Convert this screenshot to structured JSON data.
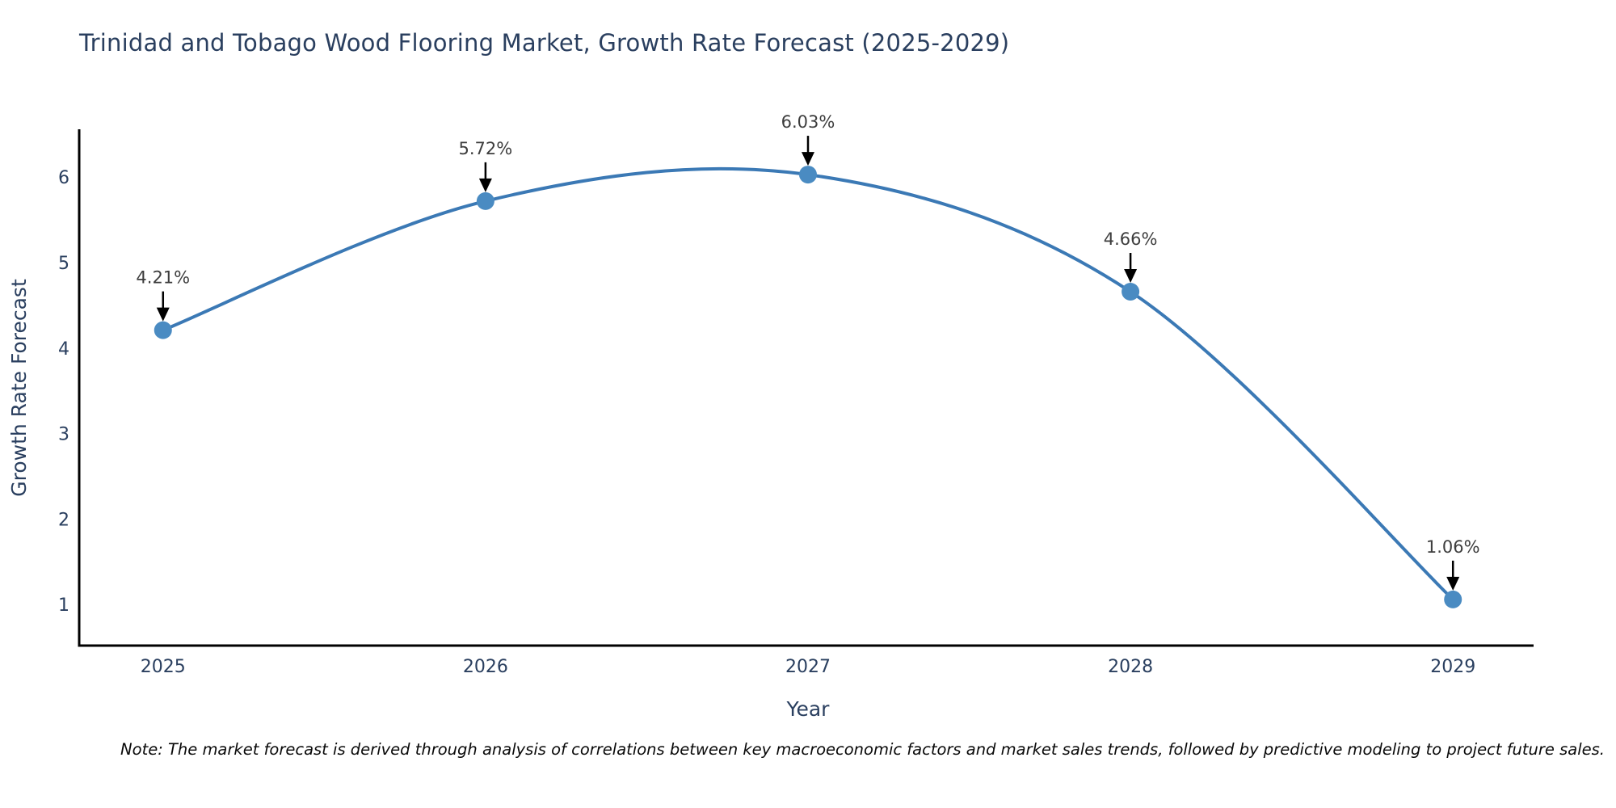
{
  "title": "Trinidad and Tobago Wood Flooring Market, Growth Rate Forecast (2025-2029)",
  "note": "Note: The market forecast is derived through analysis of correlations between key macroeconomic factors and market sales trends, followed by predictive modeling to project future sales.",
  "chart_data": {
    "type": "line",
    "title": "Trinidad and Tobago Wood Flooring Market, Growth Rate Forecast (2025-2029)",
    "xlabel": "Year",
    "ylabel": "Growth Rate Forecast",
    "x": [
      2025,
      2026,
      2027,
      2028,
      2029
    ],
    "y": [
      4.21,
      5.72,
      6.03,
      4.66,
      1.06
    ],
    "point_labels": [
      "4.21%",
      "5.72%",
      "6.03%",
      "4.66%",
      "1.06%"
    ],
    "yticks": [
      1,
      2,
      3,
      4,
      5,
      6
    ],
    "xticks": [
      2025,
      2026,
      2027,
      2028,
      2029
    ],
    "xlim": [
      2024.74,
      2029.25
    ],
    "ylim": [
      0.52,
      6.56
    ],
    "grid": false,
    "legend": "none",
    "line_shape": "spline",
    "colors": {
      "line": "#3b79b5",
      "marker": "#4a8bc2",
      "axis": "#000000",
      "annotation_arrow": "#000000",
      "annotation_text": "#3d3d3d",
      "title_text": "#2a3f5f",
      "tick_text": "#2a3f5f",
      "background": "#ffffff"
    }
  }
}
